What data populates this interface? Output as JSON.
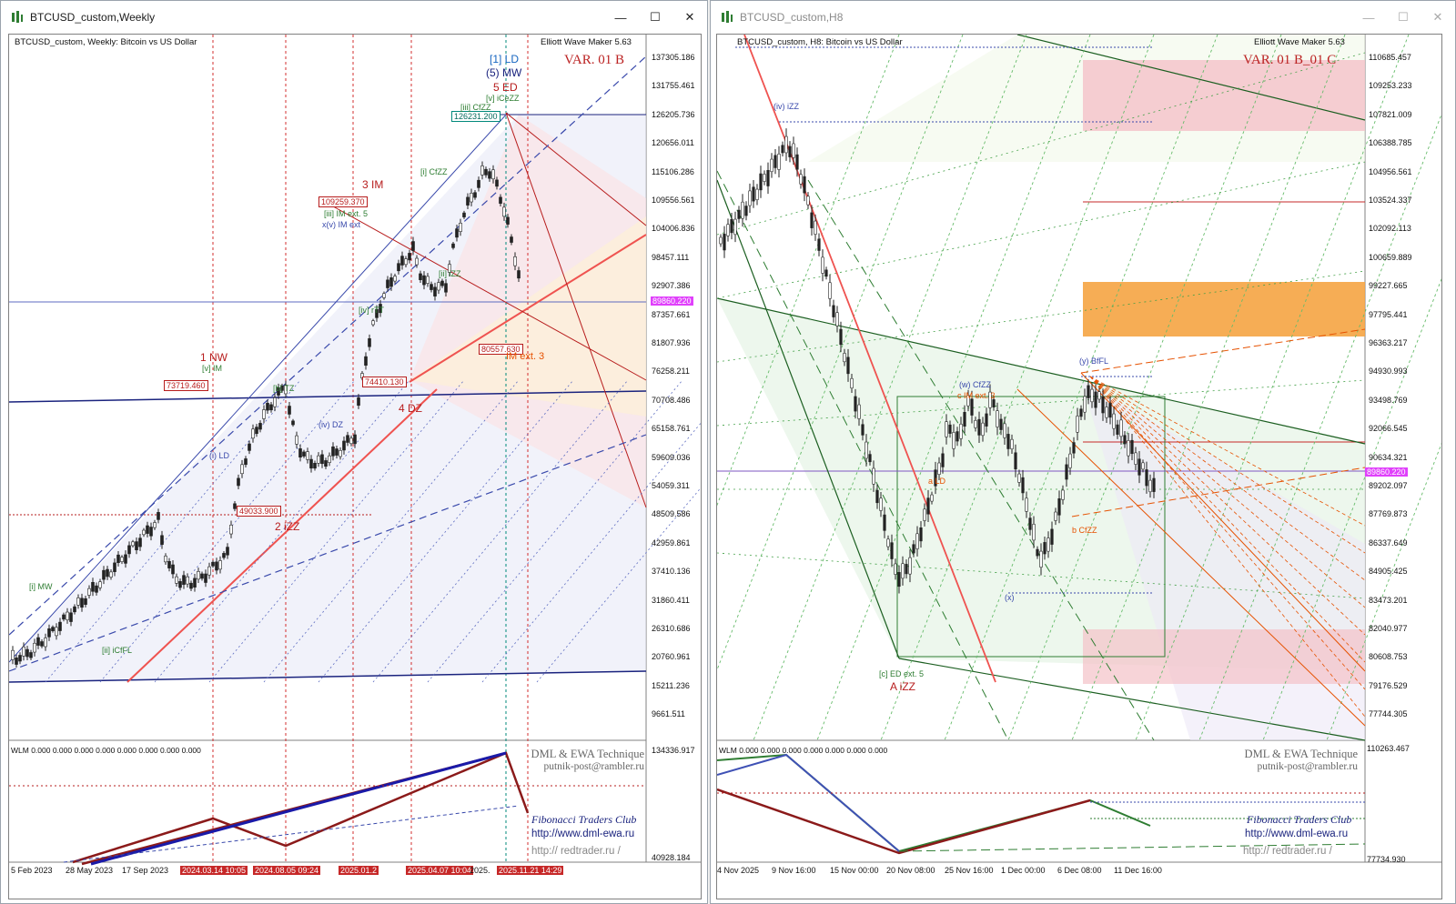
{
  "left_window": {
    "title": "BTCUSD_custom,Weekly",
    "chart_header": "BTCUSD_custom, Weekly:  Bitcoin vs US Dollar",
    "indicator": "Elliott Wave Maker 5.63",
    "variant": "VAR. 01 B",
    "price_axis": [
      "137305.186",
      "131755.461",
      "126205.736",
      "120656.011",
      "115106.286",
      "109556.561",
      "104006.836",
      "98457.111",
      "92907.386",
      "87357.661",
      "81807.936",
      "76258.211",
      "70708.486",
      "65158.761",
      "59609.036",
      "54059.311",
      "48509.586",
      "42959.861",
      "37410.136",
      "31860.411",
      "26310.686",
      "20760.961",
      "15211.236",
      "9661.511"
    ],
    "current_price": "89860.220",
    "time_axis": [
      "5 Feb 2023",
      "28 May 2023",
      "17 Sep 2023",
      "2024.03.14 10:05",
      "2024.08.05 09:24",
      "2025.01.2",
      "2025.04.07 10:04",
      "2025.",
      "2025.11.21 14:29"
    ],
    "wlm_label": "WLM 0.000 0.000 0.000 0.000 0.000 0.000 0.000 0.000",
    "wlm_axis": [
      "134336.917",
      "40928.184"
    ],
    "technique": "DML & EWA Technique",
    "email": "putnik-post@rambler.ru",
    "club": "Fibonacci     Traders     Club",
    "url1": "http://www.dml-ewa.ru",
    "url2": "http:// redtrader.ru /",
    "price_boxes": [
      "126231.200",
      "109259.370",
      "73719.460",
      "74410.130",
      "80557.630",
      "49033.900"
    ],
    "wave_labels": {
      "ld": "[1] LD",
      "mw5": "(5) MW",
      "ed5": "5 ED",
      "iceZZ": "[v] iCeZZ",
      "cfzz": "[iii] CfZZ",
      "im3": "3 IM",
      "imext": "[iii] IM ext. 5",
      "xv": "x(v) IM ext",
      "cfzz2": "[i] CfZZ",
      "izz": "[ii] iZZ",
      "nw1": "1 NW",
      "vim": "[v] IM",
      "dz4": "4 DZ",
      "izz2": "2 iZZ",
      "mw1": "[i] MW",
      "icffl": "[ii] iCfFL",
      "ld2": "(i) LD",
      "imext3": "IM ext. 3",
      "tz": "[b] TZ",
      "dz": "(iv) DZ",
      "tt": "[iv] rTT"
    }
  },
  "right_window": {
    "title": "BTCUSD_custom,H8",
    "chart_header": "BTCUSD_custom, H8:  Bitcoin vs US Dollar",
    "indicator": "Elliott Wave Maker 5.63",
    "variant": "VAR. 01 B_01 C",
    "price_axis": [
      "110685.457",
      "109253.233",
      "107821.009",
      "106388.785",
      "104956.561",
      "103524.337",
      "102092.113",
      "100659.889",
      "99227.665",
      "97795.441",
      "96363.217",
      "94930.993",
      "93498.769",
      "92066.545",
      "90634.321",
      "89202.097",
      "87769.873",
      "86337.649",
      "84905.425",
      "83473.201",
      "82040.977",
      "80608.753",
      "79176.529",
      "77744.305"
    ],
    "current_price": "89860.220",
    "time_axis": [
      "4 Nov 2025",
      "9 Nov 16:00",
      "15 Nov 00:00",
      "20 Nov 08:00",
      "25 Nov 16:00",
      "1 Dec 00:00",
      "6 Dec 08:00",
      "11 Dec 16:00"
    ],
    "wlm_label": "WLM 0.000 0.000 0.000 0.000 0.000 0.000 0.000",
    "wlm_axis": [
      "110263.467",
      "77734.930"
    ],
    "technique": "DML & EWA Technique",
    "email": "putnik-post@rambler.ru",
    "club": "Fibonacci     Traders     Club",
    "url1": "http://www.dml-ewa.ru",
    "url2": "http:// redtrader.ru /",
    "wave_labels": {
      "izz": "(iv) iZZ",
      "bifl": "(y) BfFL",
      "cfzz": "(w) CfZZ",
      "cim": "c IM ext. 3",
      "ald": "a LD",
      "ed": "[c] ED ext. 5",
      "aizz": "A iZZ",
      "bcfzz": "b CfZZ",
      "x": "(x)"
    }
  },
  "colors": {
    "bull_line": "#1a237e",
    "bear_line": "#b71c1c",
    "current_price_bg": "#e040fb",
    "supply_zone": "#f4c2c8",
    "demand_zone": "#f5a442"
  }
}
